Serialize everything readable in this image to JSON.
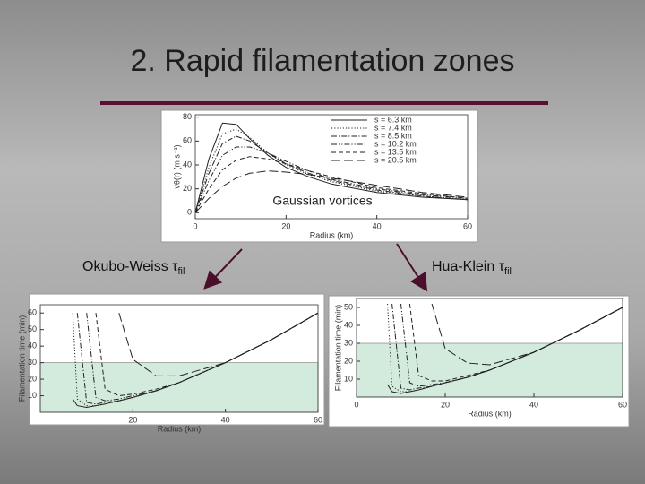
{
  "slide": {
    "title": "2. Rapid filamentation zones",
    "caption_top": "Gaussian vortices",
    "caption_left": {
      "text": "Okubo-Weiss τ",
      "sub": "fil"
    },
    "caption_right": {
      "text": "Hua-Klein τ",
      "sub": "fil"
    }
  },
  "chart_data": [
    {
      "type": "line",
      "xlabel": "Radius (km)",
      "ylabel": "vθ(r) (m s⁻¹)",
      "x": [
        0,
        3,
        6,
        9,
        12,
        16,
        20,
        25,
        30,
        40,
        50,
        60
      ],
      "xlim": [
        0,
        60
      ],
      "xticks": [
        0,
        20,
        40,
        60
      ],
      "ylim": [
        -5,
        82
      ],
      "yticks": [
        0,
        20,
        40,
        60,
        80
      ],
      "series": [
        {
          "name": "s = 6.3 km",
          "color": "#222222",
          "style": "solid",
          "values": [
            0,
            45,
            75,
            74,
            62,
            48,
            38,
            30,
            24,
            17,
            13,
            11
          ]
        },
        {
          "name": "s = 7.4 km",
          "color": "#222222",
          "style": "dotted",
          "values": [
            0,
            38,
            66,
            70,
            63,
            50,
            40,
            32,
            26,
            18,
            14,
            11
          ]
        },
        {
          "name": "s = 8.5 km",
          "color": "#222222",
          "style": "dashdot",
          "values": [
            0,
            33,
            58,
            64,
            60,
            50,
            41,
            33,
            27,
            19,
            14,
            11
          ]
        },
        {
          "name": "s = 10.2 km",
          "color": "#222222",
          "style": "dashdotdot",
          "values": [
            0,
            27,
            48,
            55,
            55,
            50,
            43,
            35,
            28,
            20,
            15,
            12
          ]
        },
        {
          "name": "s = 13.5 km",
          "color": "#222222",
          "style": "dashed",
          "values": [
            0,
            20,
            36,
            44,
            47,
            45,
            41,
            35,
            30,
            21,
            16,
            12
          ]
        },
        {
          "name": "s = 20.5 km",
          "color": "#222222",
          "style": "longdash",
          "values": [
            0,
            12,
            22,
            29,
            33,
            35,
            34,
            32,
            29,
            23,
            17,
            13
          ]
        }
      ]
    },
    {
      "type": "line",
      "xlabel": "Radius (km)",
      "ylabel": "Filamentation time (min)",
      "x": [
        5,
        6,
        7,
        8,
        10,
        12,
        14,
        17,
        20,
        25,
        30,
        40,
        50,
        60
      ],
      "xlim": [
        0,
        60
      ],
      "xticks": [
        20,
        40,
        60
      ],
      "ylim": [
        0,
        65
      ],
      "yticks": [
        10,
        20,
        30,
        40,
        50,
        60
      ],
      "shaded_range": [
        0,
        30
      ],
      "shade_color": "#d3ebdc",
      "series": [
        {
          "color": "#222222",
          "style": "solid",
          "values": [
            null,
            null,
            8,
            4,
            3,
            4,
            5,
            7,
            9,
            13,
            18,
            30,
            44,
            60
          ]
        },
        {
          "color": "#222222",
          "style": "dotted",
          "values": [
            null,
            null,
            60,
            8,
            4,
            4,
            5,
            7,
            9,
            13,
            18,
            30,
            44,
            60
          ]
        },
        {
          "color": "#222222",
          "style": "dashdot",
          "values": [
            null,
            null,
            null,
            60,
            6,
            5,
            6,
            7,
            9,
            13,
            18,
            30,
            44,
            60
          ]
        },
        {
          "color": "#222222",
          "style": "dashdotdot",
          "values": [
            null,
            null,
            null,
            null,
            60,
            9,
            7,
            8,
            10,
            13,
            18,
            30,
            44,
            60
          ]
        },
        {
          "color": "#222222",
          "style": "dashed",
          "values": [
            null,
            null,
            null,
            null,
            null,
            60,
            14,
            10,
            11,
            14,
            18,
            30,
            44,
            60
          ]
        },
        {
          "color": "#222222",
          "style": "longdash",
          "values": [
            null,
            null,
            null,
            null,
            null,
            null,
            null,
            60,
            32,
            22,
            22,
            30,
            44,
            60
          ]
        }
      ]
    },
    {
      "type": "line",
      "xlabel": "Radius (km)",
      "ylabel": "Filamentation time (min)",
      "x": [
        5,
        6,
        7,
        8,
        10,
        12,
        14,
        17,
        20,
        25,
        30,
        40,
        50,
        60
      ],
      "xlim": [
        0,
        60
      ],
      "xticks": [
        0,
        20,
        40,
        60
      ],
      "ylim": [
        0,
        55
      ],
      "yticks": [
        10,
        20,
        30,
        40,
        50
      ],
      "shaded_range": [
        0,
        30
      ],
      "shade_color": "#d3ebdc",
      "series": [
        {
          "color": "#222222",
          "style": "solid",
          "values": [
            null,
            null,
            7,
            3,
            2,
            3,
            4,
            6,
            8,
            11,
            15,
            25,
            37,
            50
          ]
        },
        {
          "color": "#222222",
          "style": "dotted",
          "values": [
            null,
            null,
            52,
            6,
            3,
            3,
            4,
            6,
            8,
            11,
            15,
            25,
            37,
            50
          ]
        },
        {
          "color": "#222222",
          "style": "dashdot",
          "values": [
            null,
            null,
            null,
            52,
            5,
            4,
            5,
            6,
            8,
            11,
            15,
            25,
            37,
            50
          ]
        },
        {
          "color": "#222222",
          "style": "dashdotdot",
          "values": [
            null,
            null,
            null,
            null,
            52,
            8,
            6,
            7,
            8,
            11,
            15,
            25,
            37,
            50
          ]
        },
        {
          "color": "#222222",
          "style": "dashed",
          "values": [
            null,
            null,
            null,
            null,
            null,
            52,
            12,
            9,
            9,
            12,
            15,
            25,
            37,
            50
          ]
        },
        {
          "color": "#222222",
          "style": "longdash",
          "values": [
            null,
            null,
            null,
            null,
            null,
            null,
            null,
            52,
            27,
            19,
            18,
            25,
            37,
            50
          ]
        }
      ]
    }
  ]
}
